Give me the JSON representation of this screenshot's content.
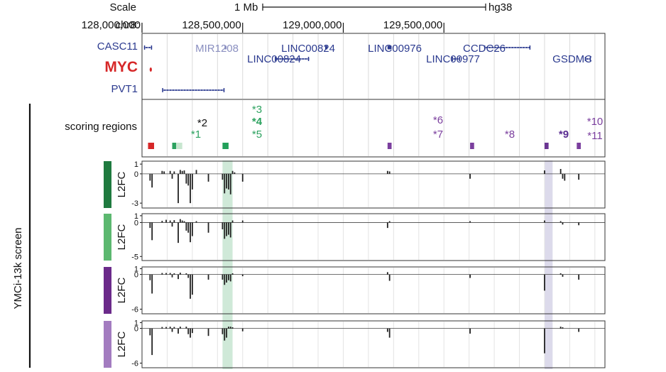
{
  "header": {
    "scale_label": "Scale",
    "scale_value": "1 Mb",
    "assembly": "hg38",
    "chrom": "chr8:",
    "positions": [
      "128,000,000",
      "128,500,000",
      "129,000,000",
      "129,500,000"
    ]
  },
  "genes": [
    {
      "name": "CASC11",
      "color": "#2b3a8f",
      "start": 128.01,
      "end": 128.05,
      "row": 1
    },
    {
      "name": "MYC",
      "color": "#d62728",
      "start": 128.04,
      "end": 128.05,
      "row": 2
    },
    {
      "name": "PVT1",
      "color": "#2b3a8f",
      "start": 128.1,
      "end": 128.41,
      "row": 3
    },
    {
      "name": "MIR1208",
      "color": "#8a8fc0",
      "start": 128.41,
      "end": 128.42,
      "row": 1
    },
    {
      "name": "LINC00824",
      "color": "#2b3a8f",
      "start": 128.91,
      "end": 128.92,
      "row": 1
    },
    {
      "name": "LINC00824",
      "color": "#2b3a8f",
      "start": 128.66,
      "end": 128.83,
      "row": 2
    },
    {
      "name": "LINC00976",
      "color": "#2b3a8f",
      "start": 129.22,
      "end": 129.24,
      "row": 1
    },
    {
      "name": "LINC00977",
      "color": "#2b3a8f",
      "start": 129.54,
      "end": 129.58,
      "row": 2
    },
    {
      "name": "CCDC26",
      "color": "#2b3a8f",
      "start": 129.7,
      "end": 129.93,
      "row": 1
    },
    {
      "name": "GSDMC",
      "color": "#2b3a8f",
      "start": 130.2,
      "end": 130.23,
      "row": 2
    }
  ],
  "scoring_regions": {
    "title": "scoring regions",
    "labels": [
      {
        "text": "*2",
        "color": "#111111",
        "bold": false
      },
      {
        "text": "*1",
        "color": "#2ca25f",
        "bold": false
      },
      {
        "text": "*3",
        "color": "#2ca25f",
        "bold": false
      },
      {
        "text": "*4",
        "color": "#2ca25f",
        "bold": true
      },
      {
        "text": "*5",
        "color": "#2ca25f",
        "bold": false
      },
      {
        "text": "*6",
        "color": "#7b3f9e",
        "bold": false
      },
      {
        "text": "*7",
        "color": "#7b3f9e",
        "bold": false
      },
      {
        "text": "*8",
        "color": "#7b3f9e",
        "bold": false
      },
      {
        "text": "*9",
        "color": "#5a2d91",
        "bold": true
      },
      {
        "text": "*10",
        "color": "#7b3f9e",
        "bold": false
      },
      {
        "text": "*11",
        "color": "#7b3f9e",
        "bold": false
      }
    ],
    "boxes": [
      {
        "start": 128.03,
        "end": 128.06,
        "color": "#d62728"
      },
      {
        "start": 128.15,
        "end": 128.17,
        "color": "#2ca25f"
      },
      {
        "start": 128.17,
        "end": 128.2,
        "color": "#c8e6cf"
      },
      {
        "start": 128.4,
        "end": 128.43,
        "color": "#22a05a"
      },
      {
        "start": 129.22,
        "end": 129.24,
        "color": "#7b3f9e"
      },
      {
        "start": 129.63,
        "end": 129.65,
        "color": "#7b3f9e"
      },
      {
        "start": 130.0,
        "end": 130.02,
        "color": "#6a3592"
      },
      {
        "start": 130.16,
        "end": 130.18,
        "color": "#7b3f9e"
      }
    ]
  },
  "screen_label": "YMCi-13k screen",
  "highlights": [
    {
      "start": 128.4,
      "end": 128.45,
      "color": "#cfe9d8"
    },
    {
      "start": 130.0,
      "end": 130.04,
      "color": "#dcdaeb"
    }
  ],
  "chart_data": {
    "type": "bar",
    "x_unit": "Mb",
    "xlim": [
      128.0,
      130.3
    ],
    "tracks": [
      {
        "swatch_color": "#1f7a3f",
        "ylabel": "L2FC",
        "ylim": [
          -3.5,
          1.3
        ],
        "yticks": [
          "1",
          "0",
          "-3"
        ],
        "bars": [
          [
            128.04,
            -0.7
          ],
          [
            128.05,
            -1.4
          ],
          [
            128.1,
            0.3
          ],
          [
            128.11,
            0.25
          ],
          [
            128.14,
            0.3
          ],
          [
            128.15,
            -0.5
          ],
          [
            128.16,
            0.25
          ],
          [
            128.18,
            -3.0
          ],
          [
            128.19,
            0.4
          ],
          [
            128.2,
            0.3
          ],
          [
            128.21,
            0.35
          ],
          [
            128.22,
            -1.0
          ],
          [
            128.23,
            -1.2
          ],
          [
            128.24,
            -3.0
          ],
          [
            128.25,
            -1.6
          ],
          [
            128.27,
            0.4
          ],
          [
            128.33,
            -0.8
          ],
          [
            128.4,
            -0.6
          ],
          [
            128.41,
            -2.0
          ],
          [
            128.42,
            -1.5
          ],
          [
            128.43,
            -1.6
          ],
          [
            128.44,
            -2.1
          ],
          [
            128.45,
            0.3
          ],
          [
            128.46,
            0.15
          ],
          [
            128.5,
            -0.8
          ],
          [
            129.22,
            0.3
          ],
          [
            129.23,
            0.25
          ],
          [
            129.63,
            -0.5
          ],
          [
            130.0,
            0.35
          ],
          [
            130.08,
            0.5
          ],
          [
            130.09,
            -0.5
          ],
          [
            130.1,
            -0.7
          ],
          [
            130.17,
            -0.6
          ]
        ]
      },
      {
        "swatch_color": "#5cb870",
        "ylabel": "L2FC",
        "ylim": [
          -5.6,
          1.3
        ],
        "yticks": [
          "1",
          "0",
          "-5"
        ],
        "bars": [
          [
            128.04,
            -0.8
          ],
          [
            128.05,
            -2.6
          ],
          [
            128.1,
            0.25
          ],
          [
            128.12,
            0.4
          ],
          [
            128.14,
            0.3
          ],
          [
            128.15,
            -0.6
          ],
          [
            128.16,
            0.35
          ],
          [
            128.18,
            -3.0
          ],
          [
            128.19,
            0.5
          ],
          [
            128.2,
            0.3
          ],
          [
            128.21,
            0.2
          ],
          [
            128.22,
            -1.2
          ],
          [
            128.23,
            -1.5
          ],
          [
            128.24,
            -2.9
          ],
          [
            128.25,
            -2.0
          ],
          [
            128.27,
            0.2
          ],
          [
            128.33,
            -1.5
          ],
          [
            128.4,
            -1.0
          ],
          [
            128.41,
            -2.4
          ],
          [
            128.42,
            -2.0
          ],
          [
            128.43,
            -1.8
          ],
          [
            128.44,
            -2.2
          ],
          [
            128.45,
            0.3
          ],
          [
            128.5,
            0.3
          ],
          [
            129.22,
            -0.8
          ],
          [
            129.23,
            0.2
          ],
          [
            129.63,
            0.2
          ],
          [
            130.0,
            0.3
          ],
          [
            130.08,
            0.2
          ],
          [
            130.09,
            -0.3
          ],
          [
            130.17,
            -0.4
          ]
        ]
      },
      {
        "swatch_color": "#6b2a8a",
        "ylabel": "L2FC",
        "ylim": [
          -6.8,
          1.3
        ],
        "yticks": [
          "1",
          "0",
          "-6"
        ],
        "bars": [
          [
            128.04,
            -1.0
          ],
          [
            128.05,
            -3.3
          ],
          [
            128.1,
            0.25
          ],
          [
            128.12,
            0.25
          ],
          [
            128.14,
            0.25
          ],
          [
            128.15,
            -0.5
          ],
          [
            128.16,
            0.2
          ],
          [
            128.18,
            -0.8
          ],
          [
            128.19,
            0.3
          ],
          [
            128.22,
            0.2
          ],
          [
            128.23,
            -0.6
          ],
          [
            128.24,
            -4.2
          ],
          [
            128.25,
            -3.5
          ],
          [
            128.33,
            -0.9
          ],
          [
            128.4,
            -0.9
          ],
          [
            128.41,
            -1.8
          ],
          [
            128.42,
            -1.4
          ],
          [
            128.43,
            -1.0
          ],
          [
            128.44,
            -1.2
          ],
          [
            128.45,
            0.2
          ],
          [
            128.5,
            -0.3
          ],
          [
            129.22,
            0.4
          ],
          [
            129.23,
            -1.1
          ],
          [
            129.63,
            -0.6
          ],
          [
            130.0,
            -2.8
          ],
          [
            130.08,
            0.2
          ],
          [
            130.09,
            -0.4
          ],
          [
            130.17,
            -0.9
          ]
        ]
      },
      {
        "swatch_color": "#a37cc0",
        "ylabel": "L2FC",
        "ylim": [
          -6.8,
          1.3
        ],
        "yticks": [
          "1",
          "0",
          "-6"
        ],
        "bars": [
          [
            128.04,
            -1.2
          ],
          [
            128.05,
            -4.6
          ],
          [
            128.1,
            0.25
          ],
          [
            128.12,
            0.25
          ],
          [
            128.14,
            0.3
          ],
          [
            128.15,
            -0.6
          ],
          [
            128.16,
            0.25
          ],
          [
            128.18,
            -0.9
          ],
          [
            128.19,
            0.3
          ],
          [
            128.22,
            0.3
          ],
          [
            128.23,
            -1.0
          ],
          [
            128.24,
            -1.6
          ],
          [
            128.25,
            -0.8
          ],
          [
            128.33,
            -1.3
          ],
          [
            128.4,
            -1.0
          ],
          [
            128.41,
            -2.1
          ],
          [
            128.42,
            -1.6
          ],
          [
            128.43,
            0.3
          ],
          [
            128.44,
            0.3
          ],
          [
            128.45,
            0.2
          ],
          [
            128.5,
            -0.5
          ],
          [
            129.22,
            -0.6
          ],
          [
            129.23,
            -1.6
          ],
          [
            129.63,
            -0.9
          ],
          [
            130.0,
            -4.3
          ],
          [
            130.08,
            0.3
          ],
          [
            130.09,
            0.2
          ],
          [
            130.17,
            -0.6
          ]
        ]
      }
    ]
  }
}
